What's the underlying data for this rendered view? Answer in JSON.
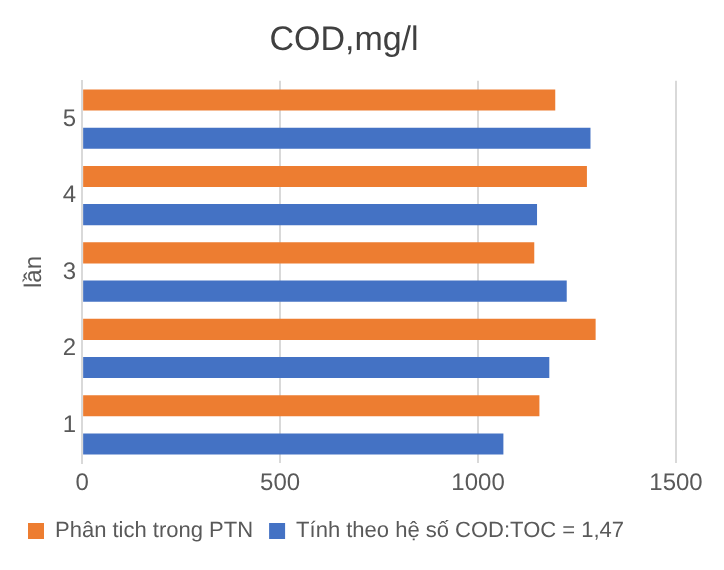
{
  "chart_data": {
    "type": "bar",
    "orientation": "horizontal",
    "title": "COD,mg/l",
    "ylabel": "lần",
    "categories": [
      "5",
      "4",
      "3",
      "2",
      "1"
    ],
    "series": [
      {
        "name": "Phân tich trong PTN",
        "color": "#ed7d31",
        "values": [
          1195,
          1275,
          1142,
          1297,
          1155
        ]
      },
      {
        "name": "Tính theo hệ số COD:TOC = 1,47",
        "color": "#4472c4",
        "values": [
          1284,
          1149,
          1224,
          1180,
          1064
        ]
      }
    ],
    "xlim": [
      0,
      1500
    ],
    "xticks": [
      0,
      500,
      1000,
      1500
    ],
    "grid": "x",
    "legend": "bottom"
  }
}
